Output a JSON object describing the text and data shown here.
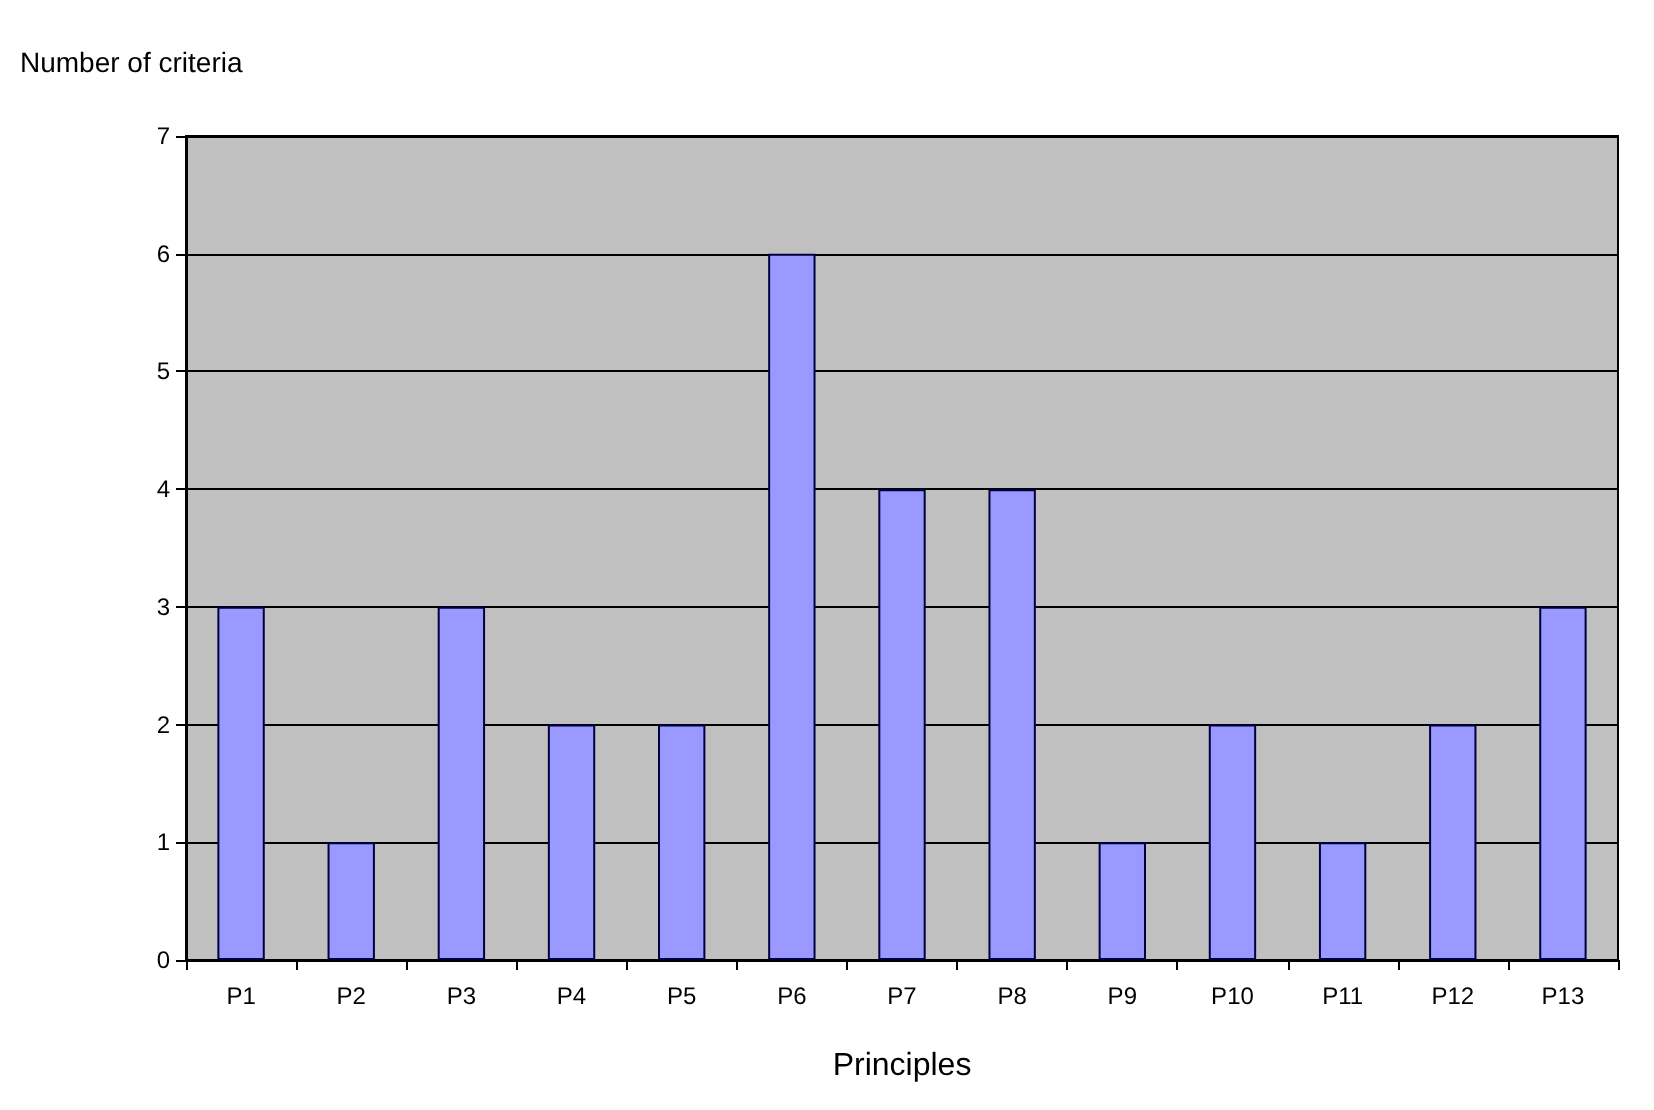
{
  "chart_data": {
    "type": "bar",
    "xlabel": "Principles",
    "ylabel": "Number of criteria",
    "categories": [
      "P1",
      "P2",
      "P3",
      "P4",
      "P5",
      "P6",
      "P7",
      "P8",
      "P9",
      "P10",
      "P11",
      "P12",
      "P13"
    ],
    "values": [
      3,
      1,
      3,
      2,
      2,
      6,
      4,
      4,
      1,
      2,
      1,
      2,
      3
    ],
    "color": "#9999ff",
    "ylim": [
      0,
      7
    ],
    "yticks": [
      0,
      1,
      2,
      3,
      4,
      5,
      6,
      7
    ],
    "grid": "y"
  }
}
